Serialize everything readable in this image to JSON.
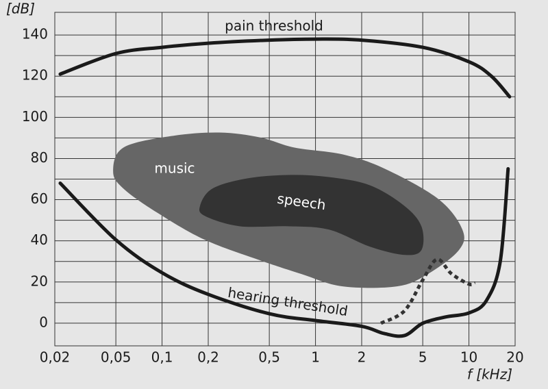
{
  "chart_data": {
    "type": "line",
    "xlabel": "f [kHz]",
    "ylabel": "[dB]",
    "xscale": "log",
    "xlim": [
      0.02,
      20
    ],
    "ylim": [
      -11,
      151
    ],
    "xticks": [
      {
        "value": 0.02,
        "label": "0,02"
      },
      {
        "value": 0.05,
        "label": "0,05"
      },
      {
        "value": 0.1,
        "label": "0,1"
      },
      {
        "value": 0.2,
        "label": "0,2"
      },
      {
        "value": 0.5,
        "label": "0,5"
      },
      1,
      2,
      5,
      10,
      20
    ],
    "yticks": [
      0,
      20,
      40,
      60,
      80,
      100,
      120,
      140
    ],
    "yminor": [
      10,
      30,
      50,
      70,
      90,
      110,
      130
    ],
    "grid": true,
    "background": "#e6e6e6",
    "series": [
      {
        "name": "music",
        "kind": "area",
        "color": "#666666",
        "x": [
          0.048,
          0.056,
          0.115,
          0.236,
          0.437,
          0.73,
          1.5,
          2.78,
          6.3,
          9.06,
          8.6,
          5.4,
          3.4,
          1.5,
          0.81,
          0.437,
          0.19,
          0.093,
          0.056
        ],
        "y": [
          73.7,
          85.3,
          90.9,
          92.6,
          90.2,
          85.3,
          82,
          75.3,
          60.4,
          45.5,
          35.5,
          23.9,
          17.9,
          17.9,
          23.9,
          30.5,
          40.5,
          53.7,
          65.4
        ]
      },
      {
        "name": "speech",
        "kind": "area",
        "color": "#333333",
        "x": [
          0.177,
          0.213,
          0.356,
          0.66,
          1.22,
          2.26,
          3.78,
          4.9,
          4.9,
          3.78,
          2.26,
          1.22,
          0.66,
          0.32,
          0.19
        ],
        "y": [
          57.1,
          65.4,
          70.3,
          72,
          71,
          67,
          57.1,
          47.1,
          35.5,
          33.2,
          37.2,
          45.5,
          47.1,
          47.1,
          52.1
        ]
      },
      {
        "name": "pain threshold",
        "kind": "line",
        "color": "#1a1a1a",
        "x": [
          0.0217,
          0.05,
          0.1,
          0.2,
          0.5,
          1,
          2,
          5,
          10,
          14,
          18.4
        ],
        "y": [
          121,
          131,
          134,
          136,
          137.5,
          138,
          137.5,
          134,
          127,
          120,
          110
        ]
      },
      {
        "name": "hearing threshold",
        "kind": "line",
        "color": "#1a1a1a",
        "x": [
          0.0217,
          0.05,
          0.1,
          0.2,
          0.5,
          1,
          2,
          2.8,
          3.8,
          5,
          7,
          10,
          13,
          16,
          18
        ],
        "y": [
          68,
          40.5,
          24.5,
          14,
          4.6,
          1.3,
          -1.5,
          -5,
          -6,
          0,
          3,
          5,
          11,
          30,
          75
        ]
      },
      {
        "kind": "line",
        "style": "dotted",
        "color": "#333333",
        "x": [
          2.67,
          3.8,
          5,
          6.2,
          7.7,
          10,
          11
        ],
        "y": [
          0,
          6,
          21,
          31,
          24,
          19,
          19.5
        ]
      }
    ]
  }
}
